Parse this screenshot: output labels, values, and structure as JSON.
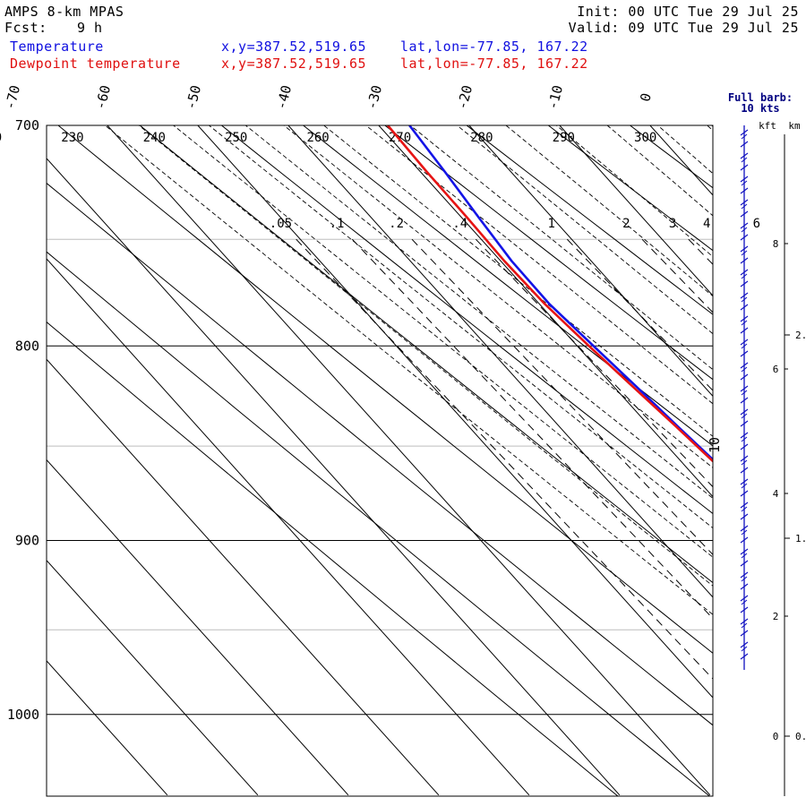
{
  "header": {
    "title": "AMPS 8-km MPAS",
    "fcst_label": "Fcst:",
    "fcst_value": "9 h",
    "init": "Init: 00 UTC Tue 29 Jul 25",
    "valid": "Valid: 09 UTC Tue 29 Jul 25",
    "temp_label": "Temperature",
    "temp_xy": "x,y=387.52,519.65",
    "temp_latlon": "lat,lon=-77.85, 167.22",
    "dew_label": "Dewpoint temperature",
    "dew_xy": "x,y=387.52,519.65",
    "dew_latlon": "lat,lon=-77.85, 167.22"
  },
  "colors": {
    "temperature": "#1414e6",
    "dewpoint": "#e61414",
    "barb": "#1010c0"
  },
  "chart_data": {
    "type": "line",
    "y_axis": "pressure (hPa), log scale",
    "ylim": [
      700,
      1050
    ],
    "pressure_labels": [
      "700",
      "800",
      "900",
      "1000"
    ],
    "isotherm_labels": [
      "-70",
      "-60",
      "-50",
      "-40",
      "-30",
      "-20",
      "-10",
      "0"
    ],
    "dry_adiabat_labels": [
      "220",
      "230",
      "240",
      "250",
      "260",
      "270",
      "280",
      "290",
      "300"
    ],
    "mixing_ratio_labels": [
      ".05",
      ".1",
      ".2",
      ".4",
      "1",
      "2",
      "3",
      "4",
      "6"
    ],
    "moist_adiabat_label": "10",
    "series": [
      {
        "name": "Temperature",
        "points": [
          [
            700,
            -26.6
          ],
          [
            720,
            -27.3
          ],
          [
            740,
            -28.1
          ],
          [
            760,
            -28.8
          ],
          [
            780,
            -28.9
          ],
          [
            800,
            -28.2
          ],
          [
            820,
            -27.5
          ],
          [
            840,
            -26.9
          ],
          [
            860,
            -26.2
          ],
          [
            880,
            -25.3
          ],
          [
            900,
            -24.5
          ],
          [
            920,
            -23.7
          ],
          [
            940,
            -23.1
          ],
          [
            960,
            -22.5
          ],
          [
            975,
            -22.4
          ]
        ]
      },
      {
        "name": "Dewpoint temperature",
        "points": [
          [
            700,
            -29.0
          ],
          [
            720,
            -29.3
          ],
          [
            740,
            -29.4
          ],
          [
            760,
            -29.6
          ],
          [
            780,
            -29.4
          ],
          [
            800,
            -28.7
          ],
          [
            820,
            -27.9
          ],
          [
            840,
            -27.1
          ],
          [
            860,
            -26.4
          ],
          [
            880,
            -25.7
          ],
          [
            900,
            -25.2
          ],
          [
            920,
            -24.9
          ],
          [
            940,
            -24.8
          ],
          [
            960,
            -25.0
          ],
          [
            975,
            -25.3
          ]
        ]
      }
    ],
    "wind_barb_header": [
      "Full barb:",
      "10 kts"
    ],
    "height_axis_headers": [
      "kft",
      "km"
    ],
    "kft_labels": [
      "0",
      "2",
      "4",
      "6",
      "8"
    ],
    "km_labels": [
      "0.",
      "1.",
      "2."
    ]
  }
}
